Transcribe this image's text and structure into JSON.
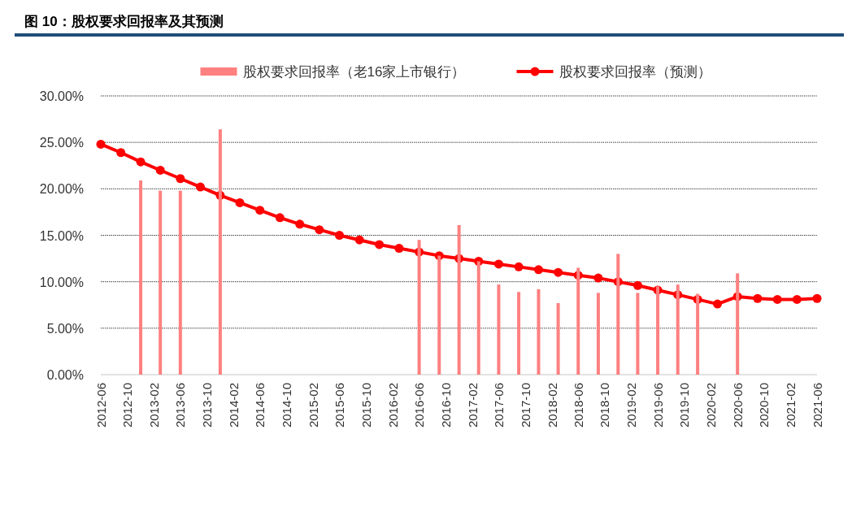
{
  "chart_data": {
    "type": "bar",
    "title": "图 10：股权要求回报率及其预测",
    "x": [
      "2012-06",
      "2012-09",
      "2012-12",
      "2013-03",
      "2013-06",
      "2013-09",
      "2013-12",
      "2014-03",
      "2014-06",
      "2014-09",
      "2014-12",
      "2015-03",
      "2015-06",
      "2015-09",
      "2015-12",
      "2016-03",
      "2016-06",
      "2016-09",
      "2016-12",
      "2017-03",
      "2017-06",
      "2017-09",
      "2017-12",
      "2018-03",
      "2018-06",
      "2018-09",
      "2018-12",
      "2019-03",
      "2019-06",
      "2019-09",
      "2019-12",
      "2020-03",
      "2020-06",
      "2020-09",
      "2020-12",
      "2021-03",
      "2021-06"
    ],
    "series": [
      {
        "name": "股权要求回报率（老16家上市银行）",
        "color": "#ff8080",
        "values": [
          null,
          null,
          20.9,
          19.8,
          19.8,
          null,
          26.4,
          null,
          null,
          null,
          null,
          null,
          null,
          null,
          null,
          null,
          14.5,
          12.8,
          16.1,
          12.2,
          9.7,
          8.9,
          9.2,
          7.7,
          11.5,
          8.8,
          13.0,
          8.8,
          9.5,
          9.7,
          8.7,
          null,
          10.9,
          null,
          null,
          null,
          null
        ]
      },
      {
        "name": "股权要求回报率（预测）",
        "type": "line",
        "color": "#ff0000",
        "marker": "circle",
        "values": [
          24.8,
          23.9,
          22.9,
          22.0,
          21.1,
          20.2,
          19.3,
          18.5,
          17.7,
          16.9,
          16.2,
          15.6,
          15.0,
          14.5,
          14.0,
          13.6,
          13.2,
          12.8,
          12.5,
          12.2,
          11.9,
          11.6,
          11.3,
          11.0,
          10.7,
          10.4,
          10.0,
          9.6,
          9.1,
          8.6,
          8.1,
          7.6,
          8.4,
          8.2,
          8.1,
          8.1,
          8.2
        ]
      }
    ],
    "xlim": [
      "2012-06",
      "2021-06"
    ],
    "xticks": [
      "2012-06",
      "2012-10",
      "2013-02",
      "2013-06",
      "2013-10",
      "2014-02",
      "2014-06",
      "2014-10",
      "2015-02",
      "2015-06",
      "2015-10",
      "2016-02",
      "2016-06",
      "2016-10",
      "2017-02",
      "2017-06",
      "2017-10",
      "2018-02",
      "2018-06",
      "2018-10",
      "2019-02",
      "2019-06",
      "2019-10",
      "2020-02",
      "2020-06",
      "2020-10",
      "2021-02",
      "2021-06"
    ],
    "ylim": [
      0,
      30
    ],
    "yticks": [
      {
        "value": 0,
        "label": "0.00%"
      },
      {
        "value": 5,
        "label": "5.00%"
      },
      {
        "value": 10,
        "label": "10.00%"
      },
      {
        "value": 15,
        "label": "15.00%"
      },
      {
        "value": 20,
        "label": "20.00%"
      },
      {
        "value": 25,
        "label": "25.00%"
      },
      {
        "value": 30,
        "label": "30.00%"
      }
    ],
    "grid": "y",
    "legend": "top"
  }
}
